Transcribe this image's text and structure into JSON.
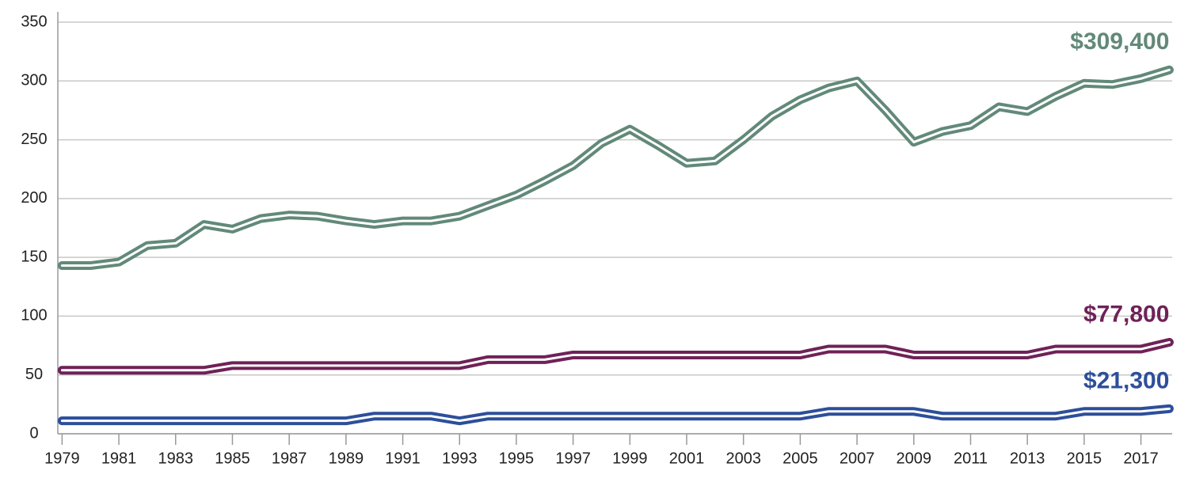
{
  "chart_data": {
    "type": "line",
    "x": [
      1979,
      1980,
      1981,
      1982,
      1983,
      1984,
      1985,
      1986,
      1987,
      1988,
      1989,
      1990,
      1991,
      1992,
      1993,
      1994,
      1995,
      1996,
      1997,
      1998,
      1999,
      2000,
      2001,
      2002,
      2003,
      2004,
      2005,
      2006,
      2007,
      2008,
      2009,
      2010,
      2011,
      2012,
      2013,
      2014,
      2015,
      2016,
      2017,
      2018
    ],
    "xlim": [
      1978.85,
      2018.1
    ],
    "xticks": [
      1979,
      1981,
      1983,
      1985,
      1987,
      1989,
      1991,
      1993,
      1995,
      1997,
      1999,
      2001,
      2003,
      2005,
      2007,
      2009,
      2011,
      2013,
      2015,
      2017
    ],
    "ylim": [
      0,
      350
    ],
    "yticks": [
      0,
      50,
      100,
      150,
      200,
      250,
      300,
      350
    ],
    "grid": true,
    "series": [
      {
        "color": "#62897a",
        "values": [
          143,
          143,
          146,
          160,
          162,
          178,
          174,
          183,
          186,
          185,
          181,
          178,
          181,
          181,
          185,
          194,
          203,
          215,
          228,
          247,
          259,
          245,
          230,
          232,
          250,
          270,
          284,
          294,
          300,
          275,
          248,
          257,
          262,
          278,
          274,
          287,
          298,
          297,
          302,
          309.4
        ],
        "value_labels": [
          null,
          null,
          null,
          null,
          null,
          null,
          null,
          null,
          null,
          null,
          null,
          null,
          null,
          null,
          null,
          null,
          null,
          null,
          null,
          null,
          null,
          null,
          null,
          null,
          null,
          null,
          null,
          null,
          null,
          null,
          null,
          null,
          null,
          null,
          null,
          null,
          null,
          null,
          null,
          "$309,400"
        ]
      },
      {
        "color": "#6f2257",
        "values": [
          54,
          54,
          54,
          54,
          54,
          54,
          58,
          58,
          58,
          58,
          58,
          58,
          58,
          58,
          58,
          63,
          63,
          63,
          67,
          67,
          67,
          67,
          67,
          67,
          67,
          67,
          67,
          72,
          72,
          72,
          67,
          67,
          67,
          67,
          67,
          72,
          72,
          72,
          72,
          77.8
        ],
        "value_labels": [
          null,
          null,
          null,
          null,
          null,
          null,
          null,
          null,
          null,
          null,
          null,
          null,
          null,
          null,
          null,
          null,
          null,
          null,
          null,
          null,
          null,
          null,
          null,
          null,
          null,
          null,
          null,
          null,
          null,
          null,
          null,
          null,
          null,
          null,
          null,
          null,
          null,
          null,
          null,
          "$77,800"
        ]
      },
      {
        "color": "#2d4f9a",
        "values": [
          11,
          11,
          11,
          11,
          11,
          11,
          11,
          11,
          11,
          11,
          11,
          15,
          15,
          15,
          11,
          15,
          15,
          15,
          15,
          15,
          15,
          15,
          15,
          15,
          15,
          15,
          15,
          19,
          19,
          19,
          19,
          15,
          15,
          15,
          15,
          15,
          19,
          19,
          19,
          21.3
        ],
        "value_labels": [
          null,
          null,
          null,
          null,
          null,
          null,
          null,
          null,
          null,
          null,
          null,
          null,
          null,
          null,
          null,
          null,
          null,
          null,
          null,
          null,
          null,
          null,
          null,
          null,
          null,
          null,
          null,
          null,
          null,
          null,
          null,
          null,
          null,
          null,
          null,
          null,
          null,
          null,
          null,
          "$21,300"
        ]
      }
    ]
  }
}
